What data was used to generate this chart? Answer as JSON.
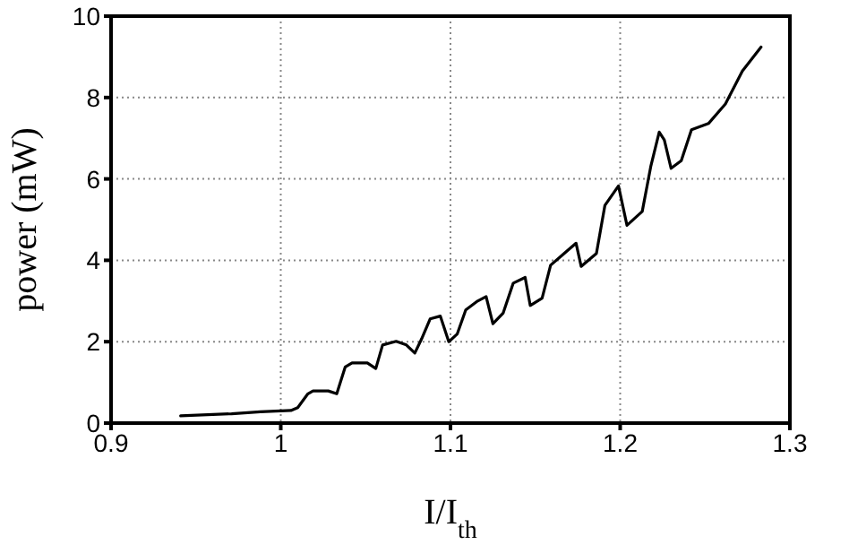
{
  "chart_data": {
    "type": "line",
    "xlabel": "I/I$_{th}$",
    "ylabel": "power (mW)",
    "xlim": [
      0.9,
      1.3
    ],
    "xticks": [
      0.9,
      1,
      1.1,
      1.2,
      1.3
    ],
    "ylim": [
      0,
      10
    ],
    "yticks": [
      0,
      2,
      4,
      6,
      8,
      10
    ],
    "grid": true,
    "marker": "none",
    "line_style": "solid",
    "series": [
      {
        "color": "#000000",
        "x": [
          0.941,
          0.971,
          0.988,
          1.006,
          1.01,
          1.016,
          1.019,
          1.028,
          1.033,
          1.038,
          1.042,
          1.051,
          1.056,
          1.06,
          1.068,
          1.074,
          1.079,
          1.083,
          1.088,
          1.094,
          1.099,
          1.104,
          1.109,
          1.116,
          1.121,
          1.125,
          1.131,
          1.137,
          1.144,
          1.147,
          1.154,
          1.159,
          1.167,
          1.174,
          1.177,
          1.186,
          1.191,
          1.199,
          1.204,
          1.213,
          1.218,
          1.223,
          1.226,
          1.23,
          1.236,
          1.242,
          1.252,
          1.262,
          1.272,
          1.283
        ],
        "values": [
          0.18,
          0.23,
          0.28,
          0.31,
          0.38,
          0.72,
          0.79,
          0.79,
          0.72,
          1.38,
          1.48,
          1.48,
          1.34,
          1.92,
          2.01,
          1.92,
          1.72,
          2.07,
          2.56,
          2.63,
          2.0,
          2.19,
          2.78,
          3.0,
          3.11,
          2.44,
          2.7,
          3.44,
          3.58,
          2.89,
          3.07,
          3.88,
          4.17,
          4.42,
          3.85,
          4.17,
          5.35,
          5.83,
          4.86,
          5.2,
          6.3,
          7.15,
          6.96,
          6.26,
          6.45,
          7.21,
          7.36,
          7.84,
          8.65,
          9.24
        ]
      }
    ]
  }
}
